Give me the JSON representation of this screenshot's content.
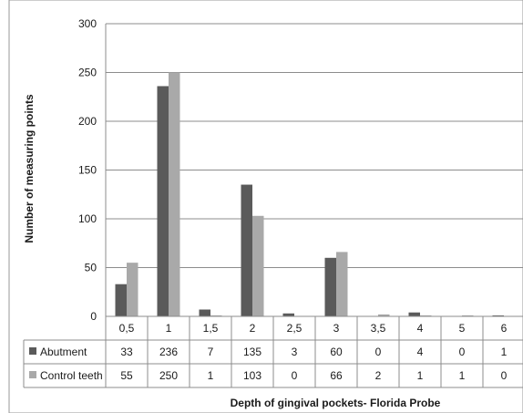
{
  "chart_data": {
    "type": "bar",
    "title": "",
    "xlabel": "Depth of gingival pockets- Florida Probe",
    "ylabel": "Number of measuring points",
    "ylim": [
      0,
      300
    ],
    "yticks": [
      "0",
      "50",
      "100",
      "150",
      "200",
      "250",
      "300"
    ],
    "categories": [
      "0,5",
      "1",
      "1,5",
      "2",
      "2,5",
      "3",
      "3,5",
      "4",
      "5",
      "6"
    ],
    "series": [
      {
        "name": "Abutment",
        "color": "#5a5a5a",
        "values": [
          33,
          236,
          7,
          135,
          3,
          60,
          0,
          4,
          0,
          1
        ]
      },
      {
        "name": "Control teeth",
        "color": "#a9a9a9",
        "values": [
          55,
          250,
          1,
          103,
          0,
          66,
          2,
          1,
          1,
          0
        ]
      }
    ],
    "data_table": true,
    "grid": "horizontal",
    "legend": "data-table"
  }
}
